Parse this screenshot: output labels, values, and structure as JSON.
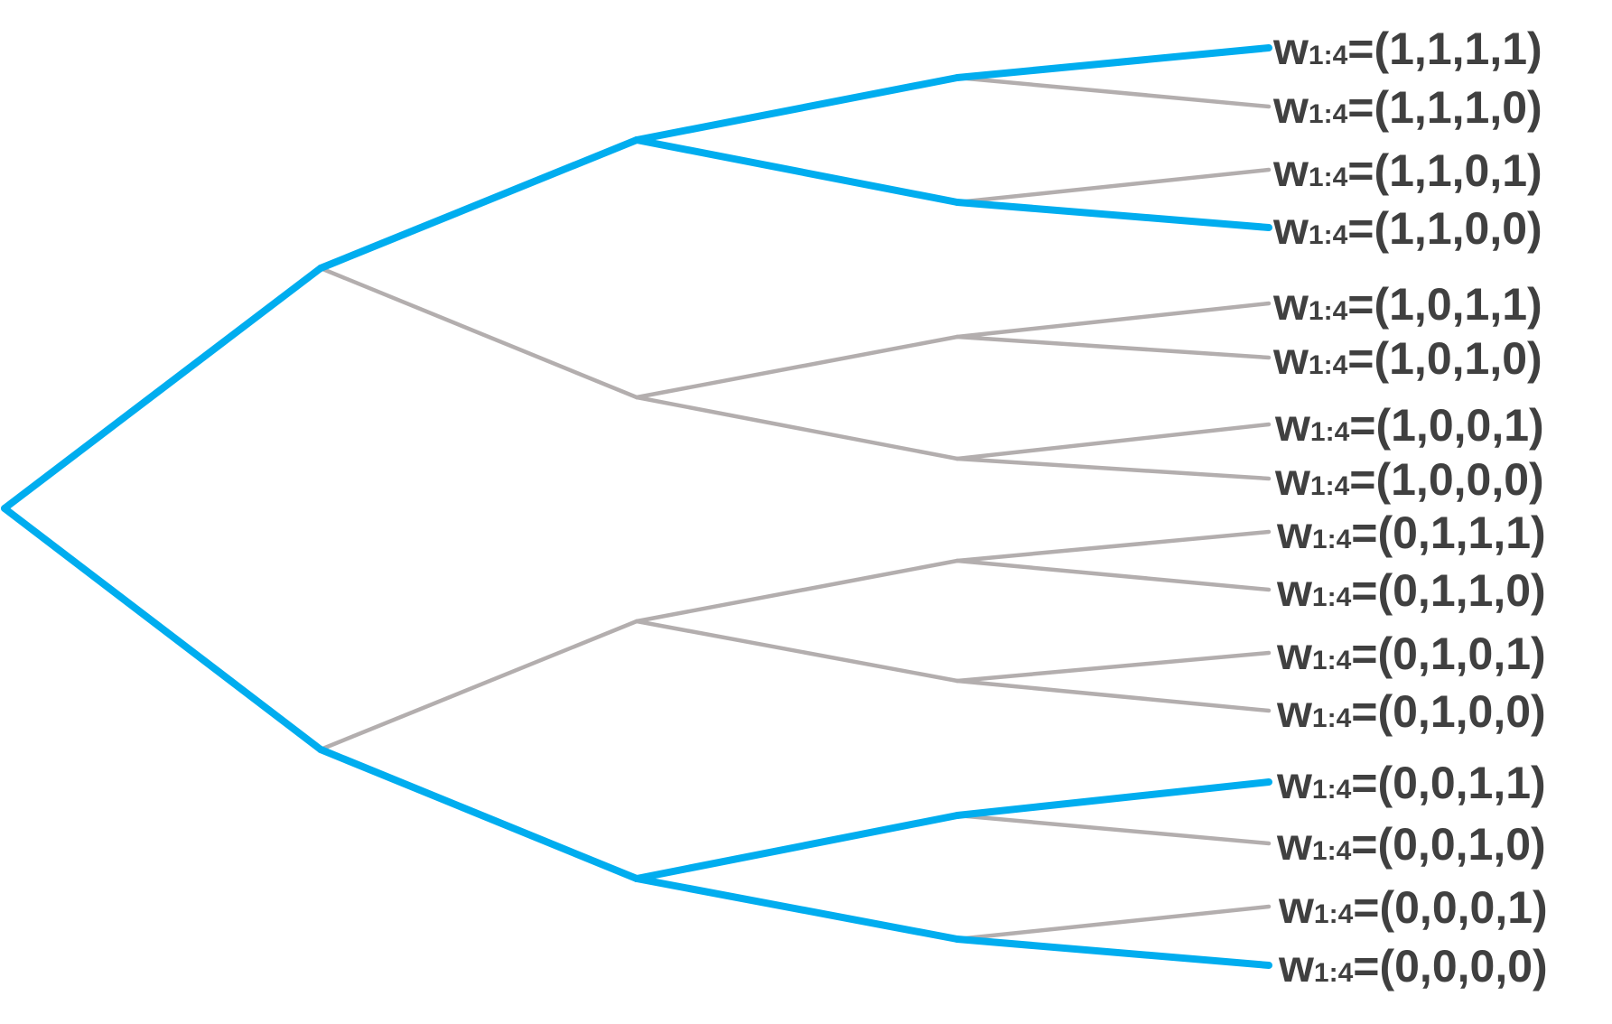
{
  "colors": {
    "highlight": "#00adef",
    "branch": "#b3aeae",
    "text": "#404040"
  },
  "leaves": [
    {
      "var": "w",
      "sub": "1:4",
      "value": "=(1,1,1,1)",
      "highlighted": true
    },
    {
      "var": "w",
      "sub": "1:4",
      "value": "=(1,1,1,0)",
      "highlighted": false
    },
    {
      "var": "w",
      "sub": "1:4",
      "value": "=(1,1,0,1)",
      "highlighted": false
    },
    {
      "var": "w",
      "sub": "1:4",
      "value": "=(1,1,0,0)",
      "highlighted": true
    },
    {
      "var": "w",
      "sub": "1:4",
      "value": "=(1,0,1,1)",
      "highlighted": false
    },
    {
      "var": "w",
      "sub": "1:4",
      "value": "=(1,0,1,0)",
      "highlighted": false
    },
    {
      "var": "w",
      "sub": "1:4",
      "value": "=(1,0,0,1)",
      "highlighted": false
    },
    {
      "var": "w",
      "sub": "1:4",
      "value": "=(1,0,0,0)",
      "highlighted": false
    },
    {
      "var": "w",
      "sub": "1:4",
      "value": "=(0,1,1,1)",
      "highlighted": false
    },
    {
      "var": "w",
      "sub": "1:4",
      "value": "=(0,1,1,0)",
      "highlighted": false
    },
    {
      "var": "w",
      "sub": "1:4",
      "value": "=(0,1,0,1)",
      "highlighted": false
    },
    {
      "var": "w",
      "sub": "1:4",
      "value": "=(0,1,0,0)",
      "highlighted": false
    },
    {
      "var": "w",
      "sub": "1:4",
      "value": "=(0,0,1,1)",
      "highlighted": true
    },
    {
      "var": "w",
      "sub": "1:4",
      "value": "=(0,0,1,0)",
      "highlighted": false
    },
    {
      "var": "w",
      "sub": "1:4",
      "value": "=(0,0,0,1)",
      "highlighted": false
    },
    {
      "var": "w",
      "sub": "1:4",
      "value": "=(0,0,0,0)",
      "highlighted": true
    }
  ]
}
